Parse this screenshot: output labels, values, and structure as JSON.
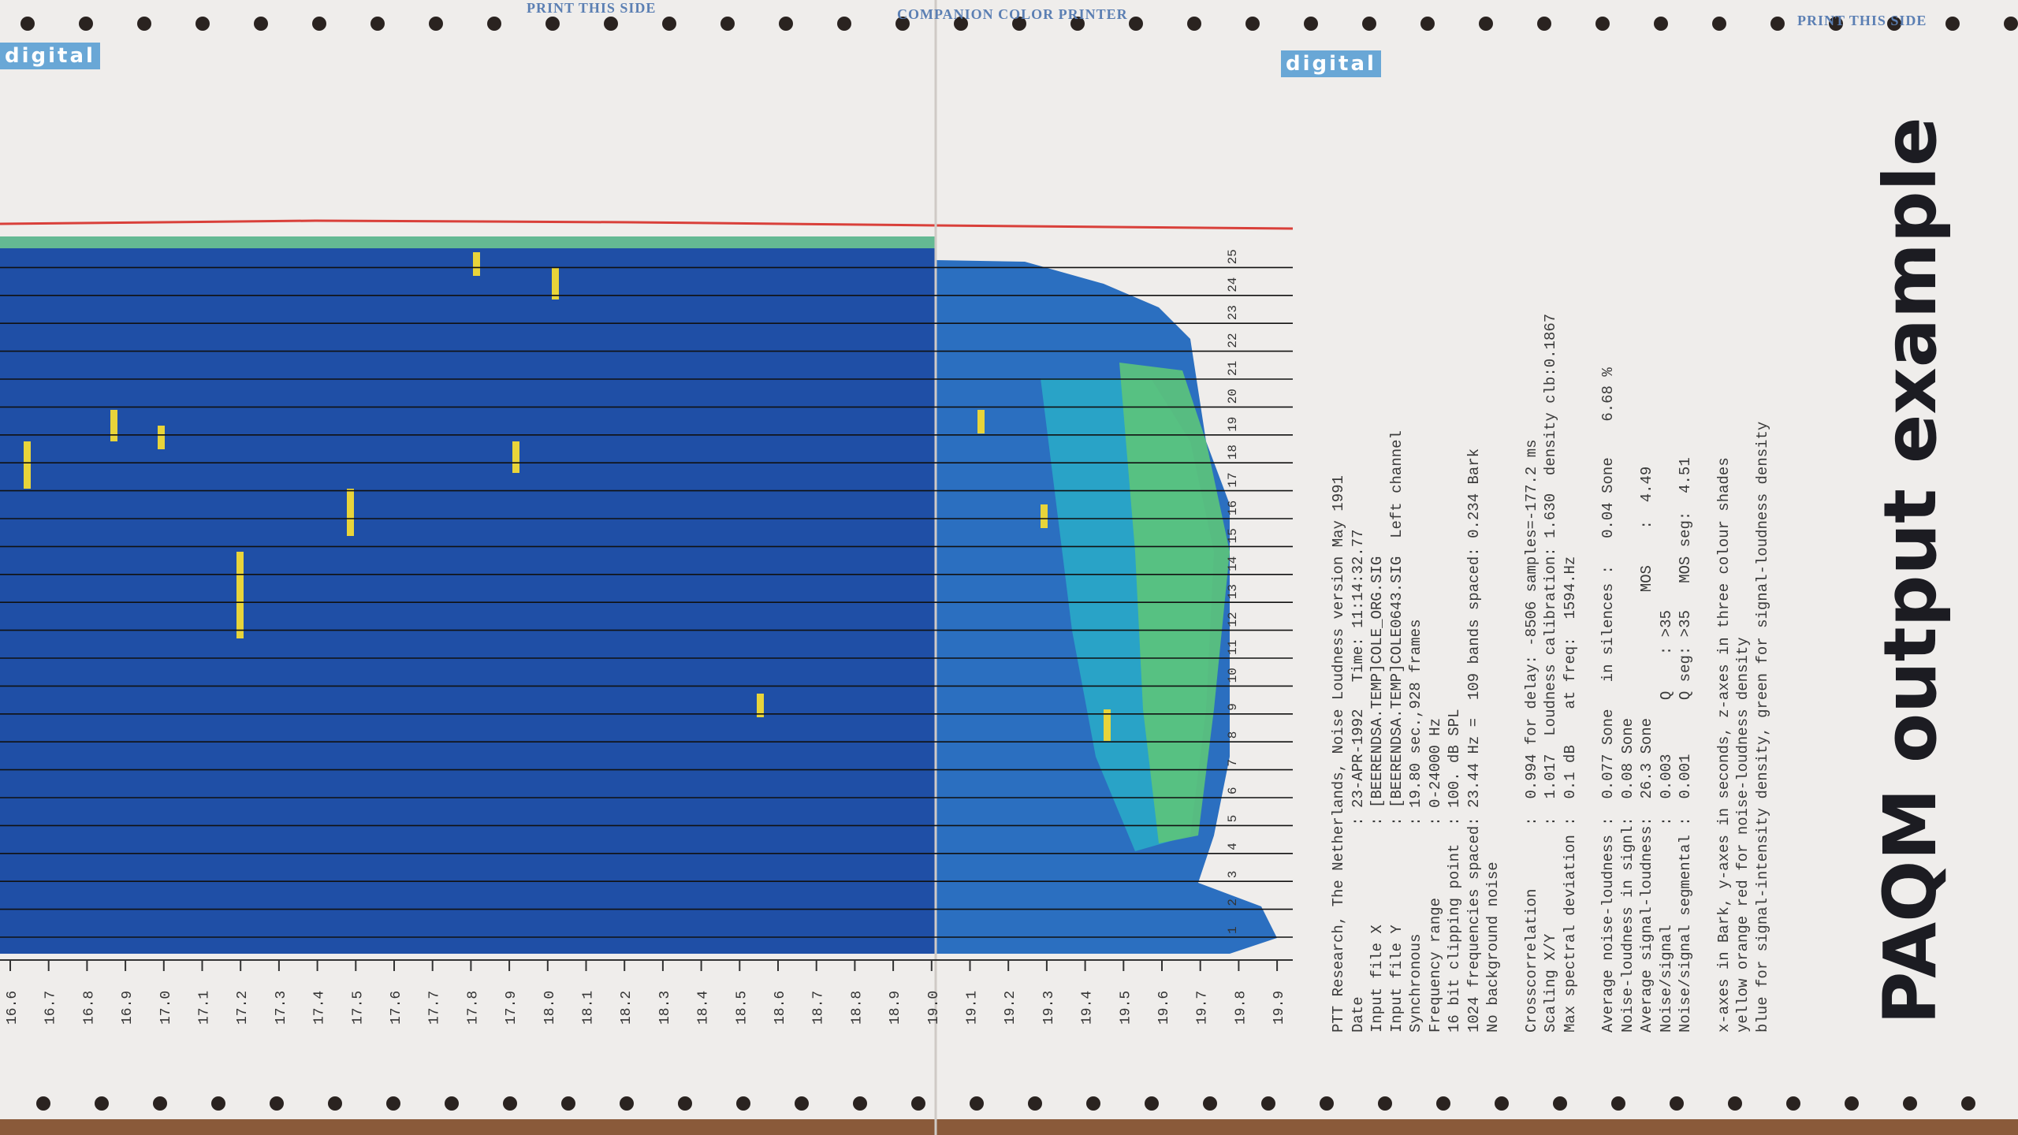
{
  "header": {
    "left_note": "PRINT THIS SIDE",
    "center_note": "COMPANION COLOR PRINTER",
    "right_note": "PRINT THIS SIDE",
    "logo_left": "digital",
    "logo_right": "digital"
  },
  "time_axis": [
    "16.6",
    "16.7",
    "16.8",
    "16.9",
    "17.0",
    "17.1",
    "17.2",
    "17.3",
    "17.4",
    "17.5",
    "17.6",
    "17.7",
    "17.8",
    "17.9",
    "18.0",
    "18.1",
    "18.2",
    "18.3",
    "18.4",
    "18.5",
    "18.6",
    "18.7",
    "18.8",
    "18.9",
    "19.0",
    "19.1",
    "19.2",
    "19.3",
    "19.4",
    "19.5",
    "19.6",
    "19.7",
    "19.8",
    "19.9"
  ],
  "bands": [
    "1",
    "2",
    "3",
    "4",
    "5",
    "6",
    "7",
    "8",
    "9",
    "10",
    "11",
    "12",
    "13",
    "14",
    "15",
    "16",
    "17",
    "18",
    "19",
    "20",
    "21",
    "22",
    "23",
    "24",
    "25"
  ],
  "info": {
    "lines": [
      "PTT Research, The Netherlands, Noise Loudness version May 1991",
      "Date                   : 23-APR-1992   Time: 11:14:32.77",
      "Input file X           : [BEERENDSA.TEMP]COLE_ORG.SIG",
      "Input file Y           : [BEERENDSA.TEMP]COLE0643.SIG  Left channel",
      "Synchronous            : 19.80 sec.,928 frames",
      "Frequency range        : 0-24000 Hz",
      "16 bit clipping point  : 100. dB SPL",
      "1024 frequencies spaced: 23.44 Hz =  109 bands spaced: 0.234 Bark",
      "No background noise",
      "Crosscorrelation       :  0.994 for delay: -8506 samples=-177.2 ms",
      "Scaling X/Y            :  1.017  Loudness calibration: 1.630  density clb:0.1867",
      "Max spectral deviation :  0.1 dB    at freq:  1594.Hz",
      "Average noise-loudness :  0.077 Sone   in silences :   0.04 Sone    6.68 %",
      "Noise-loudness in signl:  0.08 Sone",
      "Average signal-loudness:  26.3 Sone              MOS    :  4.49",
      "Noise/signal           :  0.003      Q    : >35",
      "Noise/signal segmental :  0.001      Q seg: >35   MOS seg:  4.51",
      "x-axes in Bark, y-axes in seconds, z-axes in three colour shades",
      "yellow orange red for noise-loudness density",
      "blue for signal-intensity density, green for signal-loudness density"
    ]
  },
  "handwritten": "PAQM output example"
}
